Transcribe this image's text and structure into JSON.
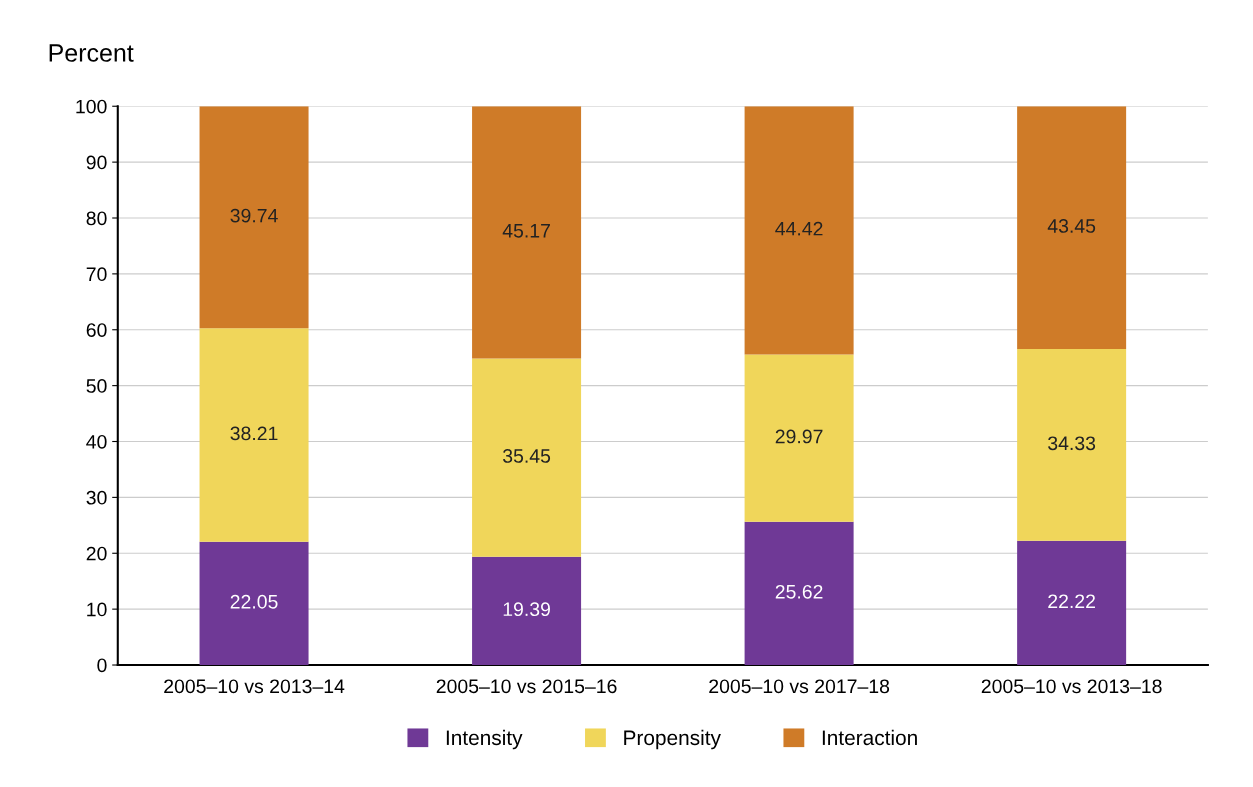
{
  "chart_data": {
    "type": "bar",
    "stacked": true,
    "ylabel": "Percent",
    "categories": [
      "2005–10 vs 2013–14",
      "2005–10 vs 2015–16",
      "2005–10 vs 2017–18",
      "2005–10 vs 2013–18"
    ],
    "series": [
      {
        "name": "Intensity",
        "color": "#6f3996",
        "values": [
          22.05,
          19.39,
          25.62,
          22.22
        ]
      },
      {
        "name": "Propensity",
        "color": "#f0d65a",
        "values": [
          38.21,
          35.45,
          29.97,
          34.33
        ]
      },
      {
        "name": "Interaction",
        "color": "#cf7b28",
        "values": [
          39.74,
          45.17,
          44.42,
          43.45
        ]
      }
    ],
    "ylim": [
      0,
      100
    ],
    "yticks": [
      0,
      10,
      20,
      30,
      40,
      50,
      60,
      70,
      80,
      90,
      100
    ],
    "grid": "y",
    "legend": "bottom",
    "data_labels": true
  }
}
